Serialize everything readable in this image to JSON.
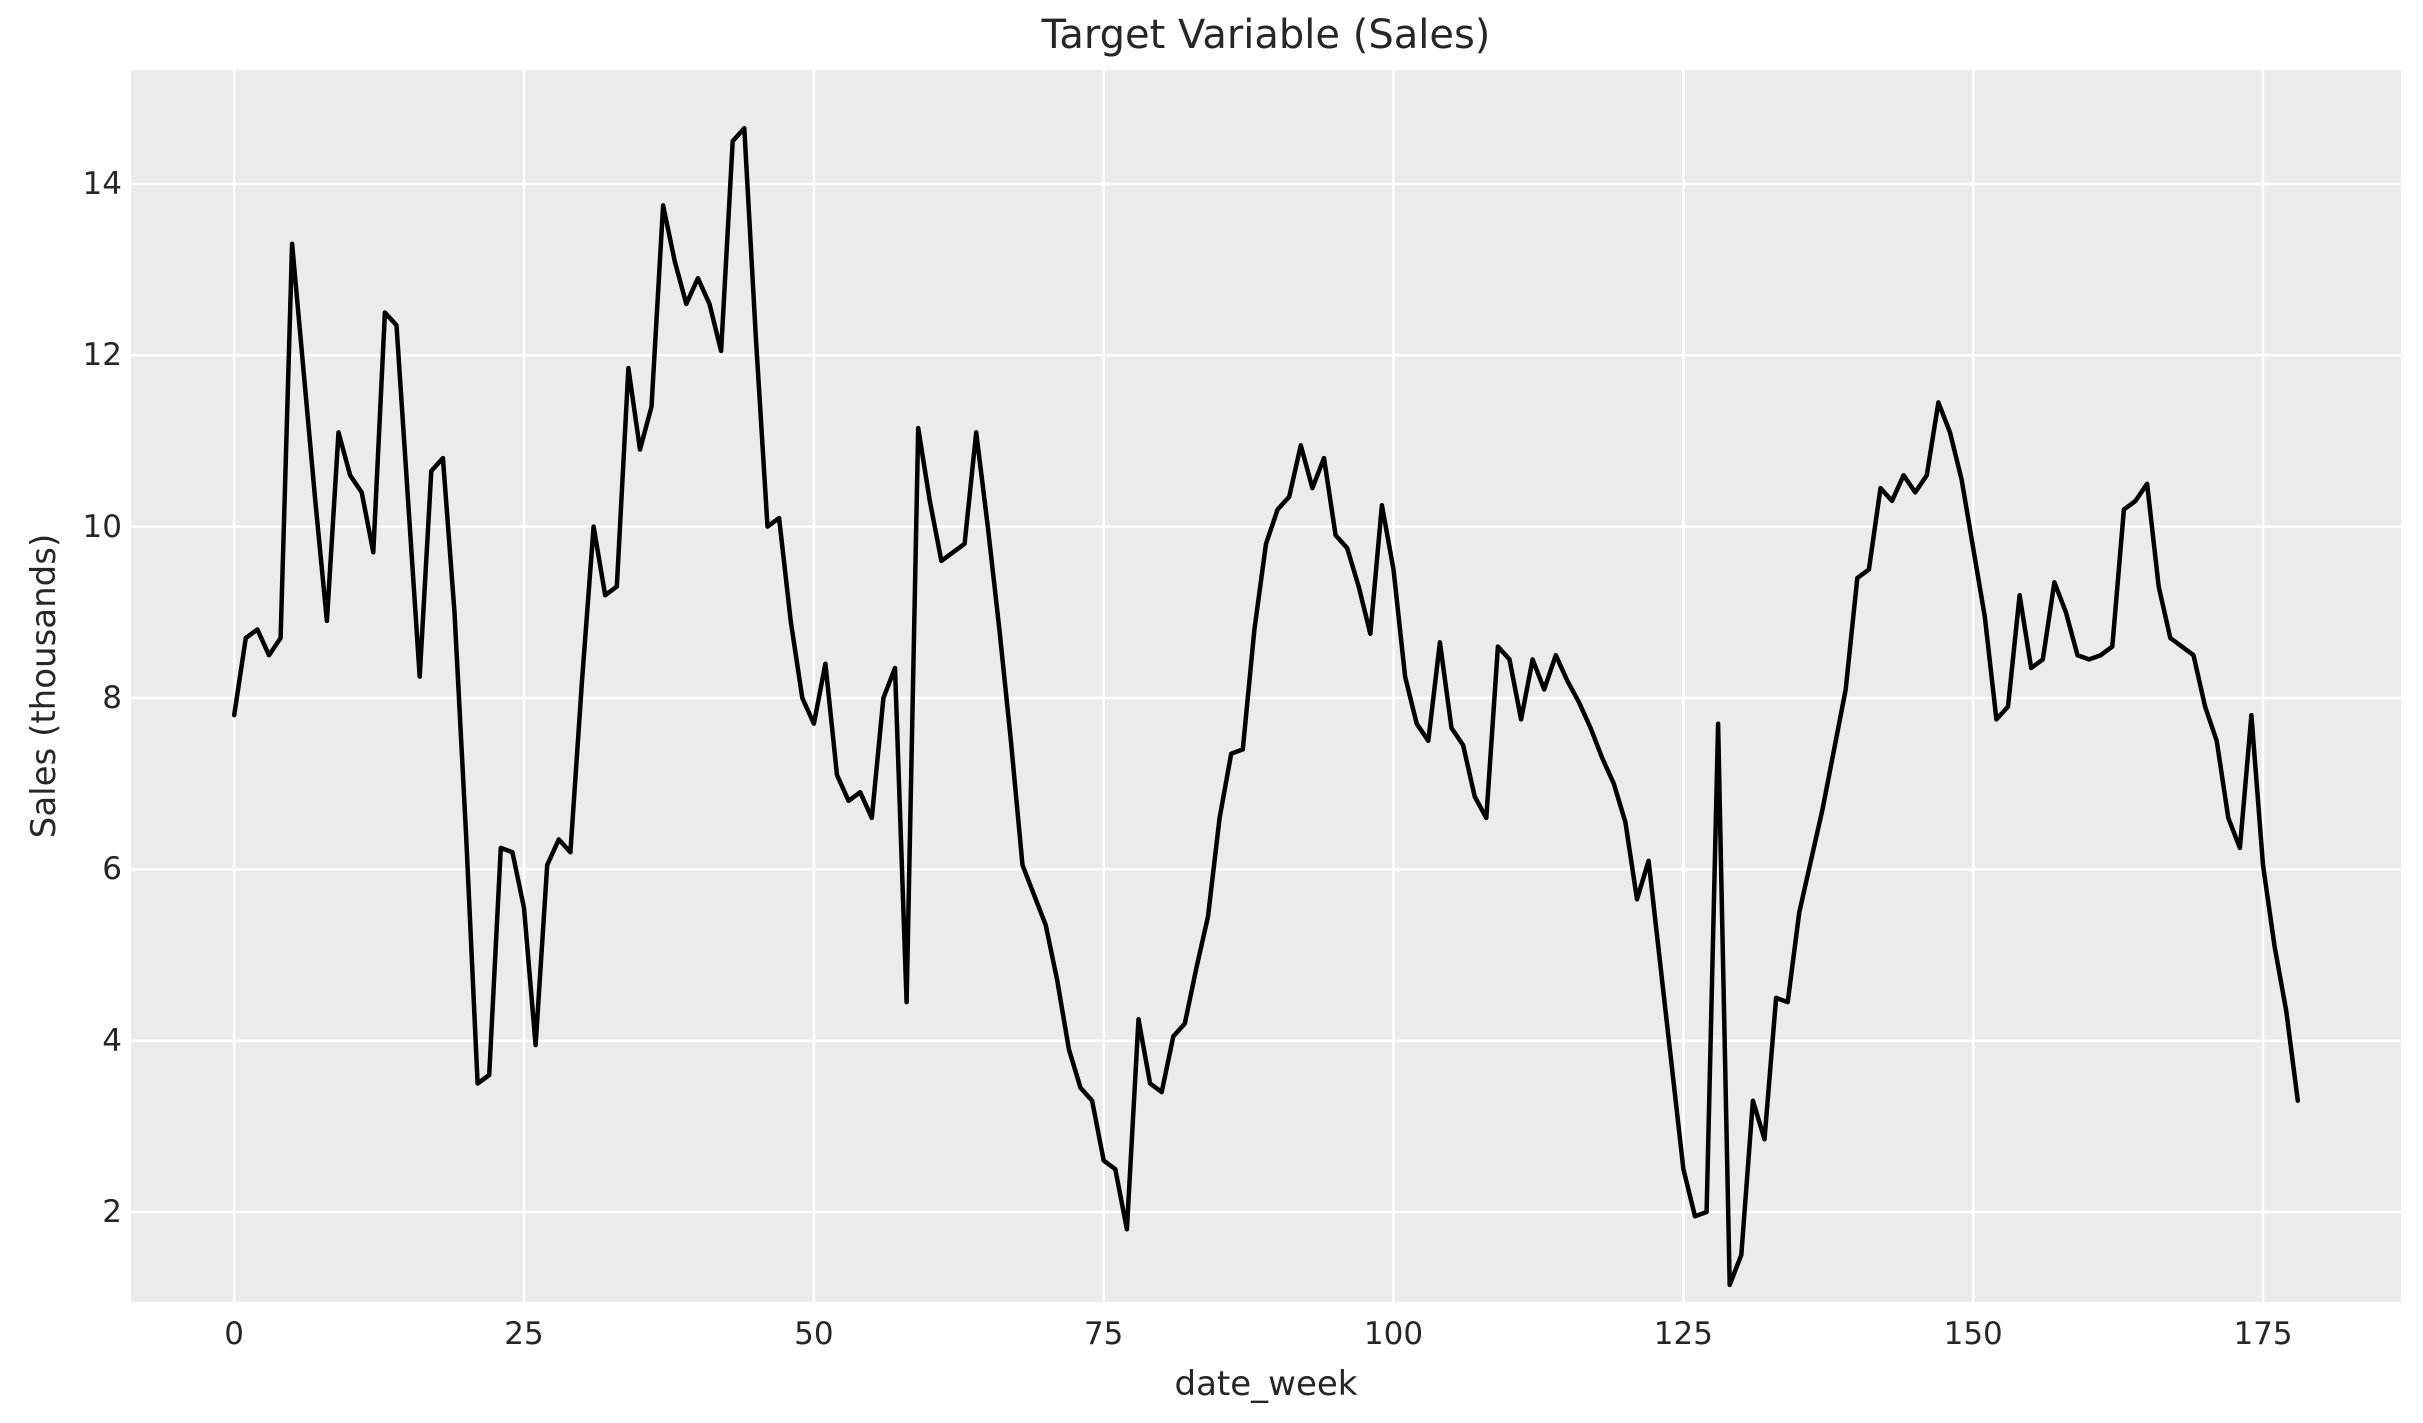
{
  "chart_data": {
    "type": "line",
    "title": "Target Variable (Sales)",
    "xlabel": "date_week",
    "ylabel": "Sales (thousands)",
    "x_start": 0,
    "x_step": 1,
    "x_ticks": [
      0,
      25,
      50,
      75,
      100,
      125,
      150,
      175
    ],
    "y_ticks": [
      2,
      4,
      6,
      8,
      10,
      12,
      14
    ],
    "xlim": [
      -8.9,
      186.9
    ],
    "ylim": [
      0.95,
      15.33
    ],
    "grid": true,
    "legend": false,
    "line_color": "#000000",
    "plot_bg_color": "#ebebeb",
    "grid_color": "#ffffff",
    "text_color": "#262626",
    "series": [
      {
        "name": "Sales",
        "values": [
          7.8,
          8.7,
          8.8,
          8.5,
          8.7,
          13.3,
          11.8,
          10.3,
          8.9,
          11.1,
          10.6,
          10.4,
          9.7,
          12.5,
          12.35,
          10.3,
          8.25,
          10.65,
          10.8,
          9.0,
          6.4,
          3.5,
          3.6,
          6.25,
          6.2,
          5.55,
          3.95,
          6.05,
          6.35,
          6.2,
          8.2,
          10.0,
          9.2,
          9.3,
          11.85,
          10.9,
          11.4,
          13.75,
          13.1,
          12.6,
          12.9,
          12.6,
          12.05,
          14.5,
          14.65,
          12.2,
          10.0,
          10.1,
          8.9,
          8.0,
          7.7,
          8.4,
          7.1,
          6.8,
          6.9,
          6.6,
          8.0,
          8.35,
          4.45,
          11.15,
          10.3,
          9.6,
          9.7,
          9.8,
          11.1,
          10.0,
          8.8,
          7.5,
          6.05,
          5.7,
          5.35,
          4.7,
          3.9,
          3.45,
          3.3,
          2.6,
          2.5,
          1.8,
          4.25,
          3.5,
          3.4,
          4.05,
          4.2,
          4.85,
          5.45,
          6.6,
          7.35,
          7.4,
          8.8,
          9.8,
          10.2,
          10.35,
          10.95,
          10.45,
          10.8,
          9.9,
          9.75,
          9.3,
          8.75,
          10.25,
          9.5,
          8.25,
          7.7,
          7.5,
          8.65,
          7.65,
          7.45,
          6.85,
          6.6,
          8.6,
          8.45,
          7.75,
          8.45,
          8.1,
          8.5,
          8.2,
          7.95,
          7.65,
          7.3,
          7.0,
          6.55,
          5.65,
          6.1,
          4.9,
          3.7,
          2.5,
          1.95,
          2.0,
          7.7,
          1.15,
          1.5,
          3.3,
          2.85,
          4.5,
          4.45,
          5.5,
          6.1,
          6.7,
          7.4,
          8.1,
          9.4,
          9.5,
          10.45,
          10.3,
          10.6,
          10.4,
          10.6,
          11.45,
          11.1,
          10.55,
          9.75,
          8.95,
          7.75,
          7.9,
          9.2,
          8.35,
          8.45,
          9.35,
          9.0,
          8.5,
          8.45,
          8.5,
          8.6,
          10.2,
          10.3,
          10.5,
          9.3,
          8.7,
          8.6,
          8.5,
          7.9,
          7.5,
          6.6,
          6.25,
          7.8,
          6.05,
          5.1,
          4.35,
          3.3
        ]
      }
    ]
  }
}
